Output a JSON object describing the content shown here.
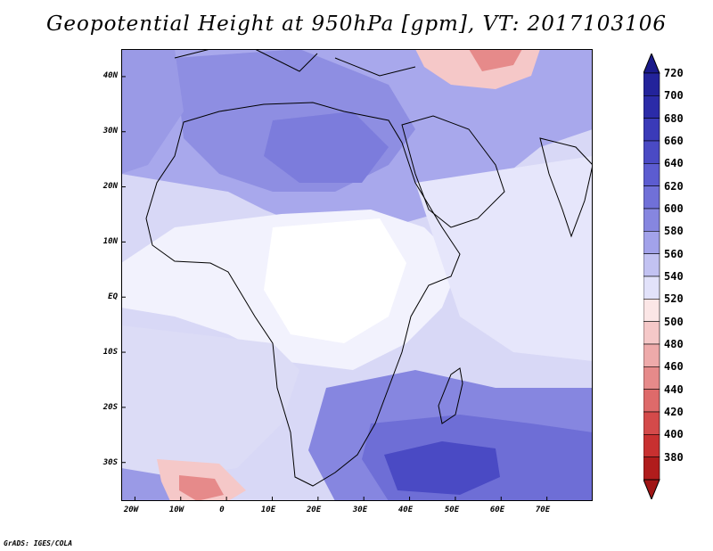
{
  "title": "Geopotential Height at 950hPa [gpm], VT: 2017103106",
  "credit": "GrADS: IGES/COLA",
  "map": {
    "lon_range": [
      -23,
      80
    ],
    "lat_range": [
      -37,
      45
    ],
    "lat_ticks": [
      {
        "value": 40,
        "label": "40N"
      },
      {
        "value": 30,
        "label": "30N"
      },
      {
        "value": 20,
        "label": "20N"
      },
      {
        "value": 10,
        "label": "10N"
      },
      {
        "value": 0,
        "label": "EQ"
      },
      {
        "value": -10,
        "label": "10S"
      },
      {
        "value": -20,
        "label": "20S"
      },
      {
        "value": -30,
        "label": "30S"
      }
    ],
    "lon_ticks": [
      {
        "value": -20,
        "label": "20W"
      },
      {
        "value": -10,
        "label": "10W"
      },
      {
        "value": 0,
        "label": "0"
      },
      {
        "value": 10,
        "label": "10E"
      },
      {
        "value": 20,
        "label": "20E"
      },
      {
        "value": 30,
        "label": "30E"
      },
      {
        "value": 40,
        "label": "40E"
      },
      {
        "value": 50,
        "label": "50E"
      },
      {
        "value": 60,
        "label": "60E"
      },
      {
        "value": 70,
        "label": "70E"
      }
    ]
  },
  "colorbar": {
    "levels": [
      {
        "label": "720",
        "color": "#23239b"
      },
      {
        "label": "700",
        "color": "#2b2ba8"
      },
      {
        "label": "680",
        "color": "#3a3ab8"
      },
      {
        "label": "660",
        "color": "#4a4ac4"
      },
      {
        "label": "640",
        "color": "#5c5cd0"
      },
      {
        "label": "620",
        "color": "#7070d8"
      },
      {
        "label": "600",
        "color": "#8686e0"
      },
      {
        "label": "580",
        "color": "#a2a2ea"
      },
      {
        "label": "560",
        "color": "#c2c2f2"
      },
      {
        "label": "540",
        "color": "#e2e2fa"
      },
      {
        "label": "520",
        "color": "#fbe6e6"
      },
      {
        "label": "500",
        "color": "#f5c8c8"
      },
      {
        "label": "480",
        "color": "#eeaaaa"
      },
      {
        "label": "460",
        "color": "#e68a8a"
      },
      {
        "label": "440",
        "color": "#de6a6a"
      },
      {
        "label": "420",
        "color": "#d44a4a"
      },
      {
        "label": "400",
        "color": "#c83030"
      },
      {
        "label": "380",
        "color": "#b01c1c"
      }
    ],
    "top_arrow_color": "#1a1a8a",
    "bottom_arrow_color": "#a01515"
  }
}
